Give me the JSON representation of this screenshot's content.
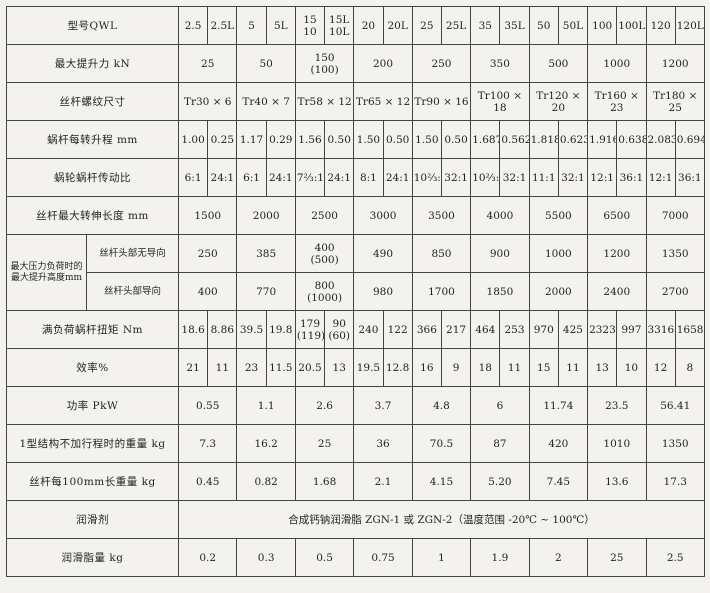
{
  "table": {
    "rows": [
      {
        "label": "型号QWL",
        "cells": [
          "2.5",
          "2.5L",
          "5",
          "5L",
          "15\n10",
          "15L\n10L",
          "20",
          "20L",
          "25",
          "25L",
          "35",
          "35L",
          "50",
          "50L",
          "100",
          "100L",
          "120",
          "120L"
        ]
      },
      {
        "label": "最大提升力 kN",
        "cells": [
          "25",
          "50",
          "150\n(100)",
          "200",
          "250",
          "350",
          "500",
          "1000",
          "1200"
        ]
      },
      {
        "label": "丝杆螺纹尺寸",
        "cells": [
          "Tr30 × 6",
          "Tr40 × 7",
          "Tr58 × 12",
          "Tr65 × 12",
          "Tr90 × 16",
          "Tr100 × 18",
          "Tr120 × 20",
          "Tr160 × 23",
          "Tr180 × 25"
        ]
      },
      {
        "label": "蜗杆每转升程 mm",
        "cells": [
          "1.00",
          "0.25",
          "1.17",
          "0.29",
          "1.56",
          "0.50",
          "1.50",
          "0.50",
          "1.50",
          "0.50",
          "1.687",
          "0.562",
          "1.818",
          "0.623",
          "1.916",
          "0.638",
          "2.083",
          "0.694"
        ]
      },
      {
        "label": "蜗轮蜗杆传动比",
        "cells": [
          "6:1",
          "24:1",
          "6:1",
          "24:1",
          "7⅔:1",
          "24:1",
          "8:1",
          "24:1",
          "10⅔:1",
          "32:1",
          "10⅔:1",
          "32:1",
          "11:1",
          "32:1",
          "12:1",
          "36:1",
          "12:1",
          "36:1"
        ]
      },
      {
        "label": "丝杆最大转伸长度 mm",
        "cells": [
          "1500",
          "2000",
          "2500",
          "3000",
          "3500",
          "4000",
          "5500",
          "6500",
          "7000"
        ]
      },
      {
        "label": "最大压力负荷时的最大提升高度mm",
        "subrows": [
          {
            "label": "丝杆头部无导向",
            "cells": [
              "250",
              "385",
              "400\n(500)",
              "490",
              "850",
              "900",
              "1000",
              "1200",
              "1350"
            ]
          },
          {
            "label": "丝杆头部导向",
            "cells": [
              "400",
              "770",
              "800\n(1000)",
              "980",
              "1700",
              "1850",
              "2000",
              "2400",
              "2700"
            ]
          }
        ]
      },
      {
        "label": "满负荷蜗杆扭矩 Nm",
        "cells": [
          "18.6",
          "8.86",
          "39.5",
          "19.8",
          "179\n(119)",
          "90\n(60)",
          "240",
          "122",
          "366",
          "217",
          "464",
          "253",
          "970",
          "425",
          "2323",
          "997",
          "3316",
          "1658"
        ]
      },
      {
        "label": "效率%",
        "cells": [
          "21",
          "11",
          "23",
          "11.5",
          "20.5",
          "13",
          "19.5",
          "12.8",
          "16",
          "9",
          "18",
          "11",
          "15",
          "11",
          "13",
          "10",
          "12",
          "8"
        ]
      },
      {
        "label": "功率 PkW",
        "cells": [
          "0.55",
          "1.1",
          "2.6",
          "3.7",
          "4.8",
          "6",
          "11.74",
          "23.5",
          "56.41"
        ]
      },
      {
        "label": "1型结构不加行程时的重量 kg",
        "cells": [
          "7.3",
          "16.2",
          "25",
          "36",
          "70.5",
          "87",
          "420",
          "1010",
          "1350"
        ]
      },
      {
        "label": "丝杆每100mm长重量 kg",
        "cells": [
          "0.45",
          "0.82",
          "1.68",
          "2.1",
          "4.15",
          "5.20",
          "7.45",
          "13.6",
          "17.3"
        ]
      },
      {
        "label": "润滑剂",
        "cells": [
          "合成钙钠润滑脂 ZGN-1 或 ZGN-2（温度范围 -20℃ ~ 100℃）"
        ]
      },
      {
        "label": "润滑脂量 kg",
        "cells": [
          "0.2",
          "0.3",
          "0.5",
          "0.75",
          "1",
          "1.9",
          "2",
          "25",
          "2.5"
        ]
      }
    ]
  }
}
